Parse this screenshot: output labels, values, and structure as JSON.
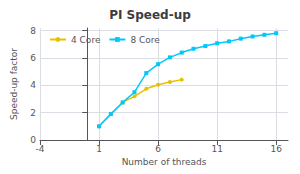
{
  "chart_data": {
    "type": "line",
    "title": "PI Speed-up",
    "xlabel": "Number of threads",
    "ylabel": "Speed-up factor",
    "series": [
      {
        "name": "4 Core",
        "color": "#e8c000",
        "marker": "circle",
        "x": [
          1,
          2,
          3,
          4,
          5,
          6,
          7,
          8
        ],
        "values": [
          1.0,
          1.9,
          2.75,
          3.2,
          3.75,
          4.05,
          4.25,
          4.42
        ]
      },
      {
        "name": "8 Core",
        "color": "#00c8ff",
        "marker": "square",
        "x": [
          1,
          2,
          3,
          4,
          5,
          6,
          7,
          8,
          9,
          10,
          11,
          12,
          13,
          14,
          15,
          16
        ],
        "values": [
          1.0,
          1.9,
          2.75,
          3.5,
          4.9,
          5.55,
          6.05,
          6.4,
          6.68,
          6.88,
          7.08,
          7.22,
          7.42,
          7.58,
          7.7,
          7.82
        ]
      }
    ],
    "xlim": [
      -4,
      17
    ],
    "xticks": [
      -4,
      1,
      6,
      11,
      16
    ],
    "ylim": [
      0,
      8.2
    ],
    "yticks": [
      0,
      2,
      4,
      6,
      8
    ],
    "grid": true,
    "legend": "upper left"
  }
}
